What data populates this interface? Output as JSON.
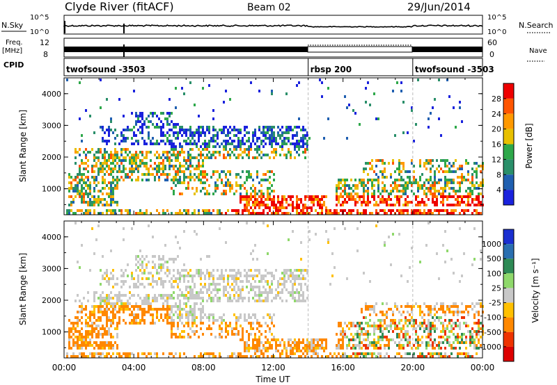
{
  "header": {
    "title": "Clyde River (fitACF)",
    "beam": "Beam 02",
    "date": "29/Jun/2014"
  },
  "strips": {
    "nsky_label": "N.Sky",
    "nsky_ticks": [
      "10^5",
      "10^0"
    ],
    "nsearch_label": "N.Search",
    "nsearch_ticks": [
      "10^5",
      "10^0"
    ],
    "freq_label_1": "Freq.",
    "freq_label_2": "[MHz]",
    "freq_ticks": [
      "12",
      "8"
    ],
    "nave_label": "Nave",
    "nave_ticks": [
      "60",
      "0"
    ],
    "cpid_label": "CPID",
    "cpid_segments": [
      {
        "label": "twofsound -3503",
        "start_hour": 0,
        "end_hour": 14.0
      },
      {
        "label": "rbsp 200",
        "start_hour": 14.0,
        "end_hour": 20.0
      },
      {
        "label": "twofsound -3503",
        "start_hour": 20.0,
        "end_hour": 24
      }
    ]
  },
  "chart_data": [
    {
      "type": "heatmap",
      "quantity": "Power",
      "ylabel": "Slant Range [km]",
      "ylim": [
        180,
        4500
      ],
      "yticks": [
        "1000",
        "2000",
        "3000",
        "4000"
      ],
      "colorbar_label": "Power [dB]",
      "colorbar_ticks": [
        "28",
        "24",
        "20",
        "16",
        "12",
        "8",
        "4"
      ],
      "colorbar_colors": [
        "#ee0000",
        "#ff5500",
        "#ff9900",
        "#e8c000",
        "#2ea84a",
        "#2a8f6a",
        "#1f5fb0",
        "#1a22dd"
      ]
    },
    {
      "type": "heatmap",
      "quantity": "Velocity",
      "ylabel": "Slant Range [km]",
      "ylim": [
        180,
        4500
      ],
      "yticks": [
        "1000",
        "2000",
        "3000",
        "4000"
      ],
      "xlabel": "Time UT",
      "xticks": [
        "00:00",
        "04:00",
        "08:00",
        "12:00",
        "16:00",
        "20:00",
        "00:00"
      ],
      "colorbar_label": "Velocity [m s⁻¹]",
      "colorbar_ticks": [
        "1000",
        "500",
        "100",
        "25",
        "-25",
        "-100",
        "-500",
        "-1000"
      ],
      "colorbar_colors": [
        "#1a2fd0",
        "#2a6fb0",
        "#2e8a55",
        "#8fd86b",
        "#c8c8c8",
        "#ffc000",
        "#ff8800",
        "#ee3300",
        "#dd0000"
      ]
    }
  ]
}
